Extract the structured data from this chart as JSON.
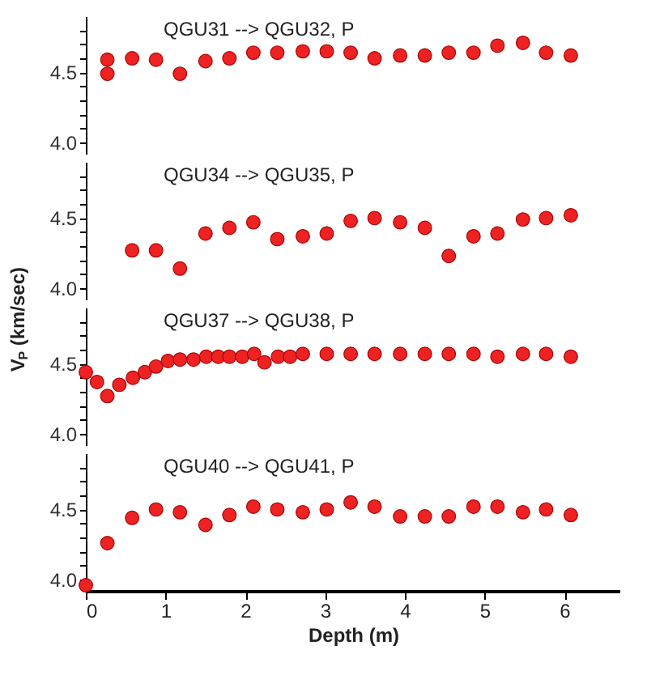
{
  "chart_data": [
    {
      "type": "scatter",
      "annotations": [
        "QGU31 --> QGU32, P"
      ],
      "marker": "circle",
      "grid": false,
      "tick_labels": "y",
      "xlim": [
        0,
        6.7
      ],
      "ylim": [
        3.92,
        4.9
      ],
      "yticks": [
        {
          "value": 4.0,
          "label": "4.0"
        },
        {
          "value": 4.1,
          "label": null
        },
        {
          "value": 4.2,
          "label": null
        },
        {
          "value": 4.3,
          "label": null
        },
        {
          "value": 4.4,
          "label": null
        },
        {
          "value": 4.5,
          "label": "4.5"
        },
        {
          "value": 4.6,
          "label": null
        },
        {
          "value": 4.7,
          "label": null
        },
        {
          "value": 4.8,
          "label": null
        }
      ],
      "series": [
        {
          "color": "#ee2222",
          "x": [
            0.27,
            0.27,
            0.58,
            0.88,
            1.18,
            1.5,
            1.8,
            2.1,
            2.4,
            2.72,
            3.02,
            3.32,
            3.62,
            3.94,
            4.25,
            4.55,
            4.86,
            5.16,
            5.48,
            5.77,
            6.08
          ],
          "values": [
            4.59,
            4.49,
            4.6,
            4.59,
            4.49,
            4.58,
            4.6,
            4.64,
            4.64,
            4.65,
            4.65,
            4.64,
            4.6,
            4.62,
            4.62,
            4.64,
            4.64,
            4.69,
            4.71,
            4.64,
            4.62
          ]
        }
      ]
    },
    {
      "type": "scatter",
      "annotations": [
        "QGU34 --> QGU35, P"
      ],
      "marker": "circle",
      "grid": false,
      "tick_labels": "y",
      "xlim": [
        0,
        6.7
      ],
      "ylim": [
        3.92,
        4.9
      ],
      "yticks": [
        {
          "value": 4.0,
          "label": "4.0"
        },
        {
          "value": 4.1,
          "label": null
        },
        {
          "value": 4.2,
          "label": null
        },
        {
          "value": 4.3,
          "label": null
        },
        {
          "value": 4.4,
          "label": null
        },
        {
          "value": 4.5,
          "label": "4.5"
        },
        {
          "value": 4.6,
          "label": null
        },
        {
          "value": 4.7,
          "label": null
        },
        {
          "value": 4.8,
          "label": null
        }
      ],
      "series": [
        {
          "color": "#ee2222",
          "x": [
            0.58,
            0.88,
            1.18,
            1.5,
            1.8,
            2.1,
            2.4,
            2.72,
            3.02,
            3.32,
            3.62,
            3.94,
            4.25,
            4.55,
            4.86,
            5.16,
            5.48,
            5.77,
            6.08
          ],
          "values": [
            4.27,
            4.27,
            4.14,
            4.39,
            4.43,
            4.47,
            4.35,
            4.37,
            4.39,
            4.48,
            4.5,
            4.47,
            4.43,
            4.23,
            4.37,
            4.39,
            4.49,
            4.5,
            4.52
          ]
        }
      ]
    },
    {
      "type": "scatter",
      "annotations": [
        "QGU37 --> QGU38, P"
      ],
      "ylabel": "V$_{P}$ (km/sec)",
      "marker": "circle",
      "grid": false,
      "tick_labels": "y",
      "xlim": [
        0,
        6.7
      ],
      "ylim": [
        3.92,
        4.9
      ],
      "yticks": [
        {
          "value": 4.0,
          "label": "4.0"
        },
        {
          "value": 4.1,
          "label": null
        },
        {
          "value": 4.2,
          "label": null
        },
        {
          "value": 4.3,
          "label": null
        },
        {
          "value": 4.4,
          "label": null
        },
        {
          "value": 4.5,
          "label": "4.5"
        },
        {
          "value": 4.6,
          "label": null
        },
        {
          "value": 4.7,
          "label": null
        },
        {
          "value": 4.8,
          "label": null
        }
      ],
      "series": [
        {
          "color": "#ee2222",
          "x": [
            0,
            0.14,
            0.27,
            0.42,
            0.59,
            0.74,
            0.88,
            1.03,
            1.18,
            1.35,
            1.51,
            1.66,
            1.8,
            1.96,
            2.11,
            2.24,
            2.41,
            2.56,
            2.72,
            3.02,
            3.32,
            3.62,
            3.94,
            4.25,
            4.55,
            4.86,
            5.16,
            5.48,
            5.77,
            6.08
          ],
          "values": [
            4.44,
            4.37,
            4.27,
            4.35,
            4.4,
            4.44,
            4.48,
            4.52,
            4.53,
            4.53,
            4.55,
            4.55,
            4.55,
            4.55,
            4.57,
            4.51,
            4.55,
            4.55,
            4.57,
            4.57,
            4.57,
            4.57,
            4.57,
            4.57,
            4.57,
            4.57,
            4.55,
            4.57,
            4.57,
            4.55
          ]
        }
      ]
    },
    {
      "type": "scatter",
      "annotations": [
        "QGU40 --> QGU41, P"
      ],
      "xlabel": "Depth (m)",
      "marker": "circle",
      "grid": false,
      "xlim": [
        0,
        6.7
      ],
      "ylim": [
        3.92,
        4.9
      ],
      "xticks": [
        0,
        1,
        2,
        3,
        4,
        5,
        6
      ],
      "yticks": [
        {
          "value": 4.0,
          "label": "4.0"
        },
        {
          "value": 4.1,
          "label": null
        },
        {
          "value": 4.2,
          "label": null
        },
        {
          "value": 4.3,
          "label": null
        },
        {
          "value": 4.4,
          "label": null
        },
        {
          "value": 4.5,
          "label": "4.5"
        },
        {
          "value": 4.6,
          "label": null
        },
        {
          "value": 4.7,
          "label": null
        },
        {
          "value": 4.8,
          "label": null
        }
      ],
      "series": [
        {
          "color": "#ee2222",
          "x": [
            0,
            0.27,
            0.58,
            0.88,
            1.18,
            1.5,
            1.8,
            2.1,
            2.4,
            2.72,
            3.02,
            3.32,
            3.62,
            3.94,
            4.25,
            4.55,
            4.86,
            5.16,
            5.48,
            5.77,
            6.08
          ],
          "values": [
            3.96,
            4.26,
            4.44,
            4.5,
            4.48,
            4.39,
            4.46,
            4.52,
            4.5,
            4.48,
            4.5,
            4.55,
            4.52,
            4.45,
            4.45,
            4.45,
            4.52,
            4.52,
            4.48,
            4.5,
            4.46
          ]
        }
      ]
    }
  ]
}
